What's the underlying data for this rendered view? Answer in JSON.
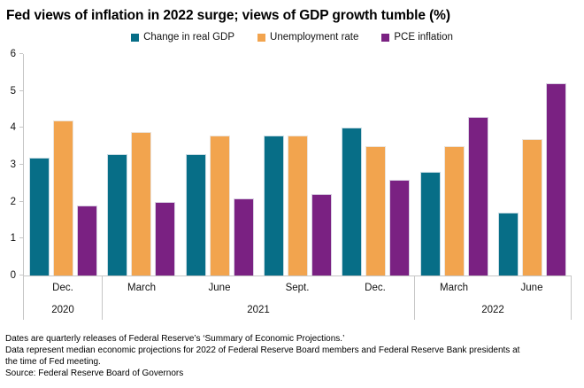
{
  "chart_data": {
    "type": "bar",
    "title": "Fed views of inflation in 2022 surge; views of GDP growth tumble (%)",
    "xlabel": "",
    "ylabel": "",
    "ylim": [
      0,
      6
    ],
    "yticks": [
      0,
      1,
      2,
      3,
      4,
      5,
      6
    ],
    "grid": false,
    "legend_position": "top-center",
    "categories": [
      "Dec.",
      "March",
      "June",
      "Sept.",
      "Dec.",
      "March",
      "June"
    ],
    "category_years": [
      {
        "year": "2020",
        "count": 1
      },
      {
        "year": "2021",
        "count": 4
      },
      {
        "year": "2022",
        "count": 2
      }
    ],
    "series": [
      {
        "name": "Change in real GDP",
        "color": "#076e87",
        "values": [
          3.2,
          3.3,
          3.3,
          3.8,
          4.0,
          2.8,
          1.7
        ]
      },
      {
        "name": "Unemployment rate",
        "color": "#f2a44e",
        "values": [
          4.2,
          3.9,
          3.8,
          3.8,
          3.5,
          3.5,
          3.7
        ]
      },
      {
        "name": "PCE inflation",
        "color": "#7a2182",
        "values": [
          1.9,
          2.0,
          2.1,
          2.2,
          2.6,
          4.3,
          5.2
        ]
      }
    ],
    "axis_color": "#c6c6c6"
  },
  "notes": {
    "line1": "Dates are quarterly releases of Federal Reserve’s ‘Summary of Economic Projections.’",
    "line2": "Data represent median economic projections for 2022 of Federal Reserve Board members and Federal Reserve Bank presidents at the time of Fed meeting.",
    "source": "Source: Federal Reserve Board of Governors"
  }
}
